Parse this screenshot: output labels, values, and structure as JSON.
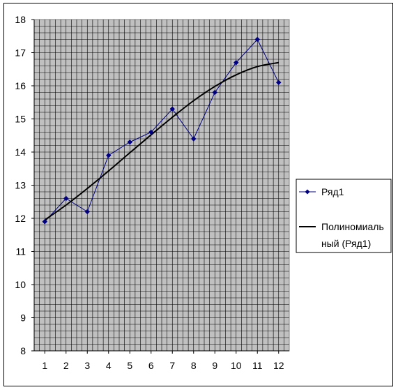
{
  "chart_data": {
    "type": "line",
    "title": "",
    "xlabel": "",
    "ylabel": "",
    "x": [
      1,
      2,
      3,
      4,
      5,
      6,
      7,
      8,
      9,
      10,
      11,
      12
    ],
    "xlim": [
      0.5,
      12.5
    ],
    "ylim": [
      8,
      18
    ],
    "x_tick_labels": [
      "1",
      "2",
      "3",
      "4",
      "5",
      "6",
      "7",
      "8",
      "9",
      "10",
      "11",
      "12"
    ],
    "y_tick_labels": [
      "8",
      "9",
      "10",
      "11",
      "12",
      "13",
      "14",
      "15",
      "16",
      "17",
      "18"
    ],
    "grid": true,
    "plot_background": "#c0c0c0",
    "legend_position": "right",
    "series": [
      {
        "name": "Ряд1",
        "values": [
          11.9,
          12.6,
          12.2,
          13.9,
          14.3,
          14.6,
          15.3,
          14.4,
          15.8,
          16.7,
          17.4,
          16.1
        ],
        "color": "#000080",
        "marker": "diamond"
      },
      {
        "name": "Полиномиальный (Ряд1)",
        "legend_lines": [
          "Полиномиаль",
          "ный (Ряд1)"
        ],
        "kind": "trendline",
        "values": [
          11.95,
          12.4,
          12.9,
          13.43,
          13.98,
          14.52,
          15.05,
          15.55,
          15.98,
          16.33,
          16.58,
          16.7
        ],
        "color": "#000000"
      }
    ]
  }
}
